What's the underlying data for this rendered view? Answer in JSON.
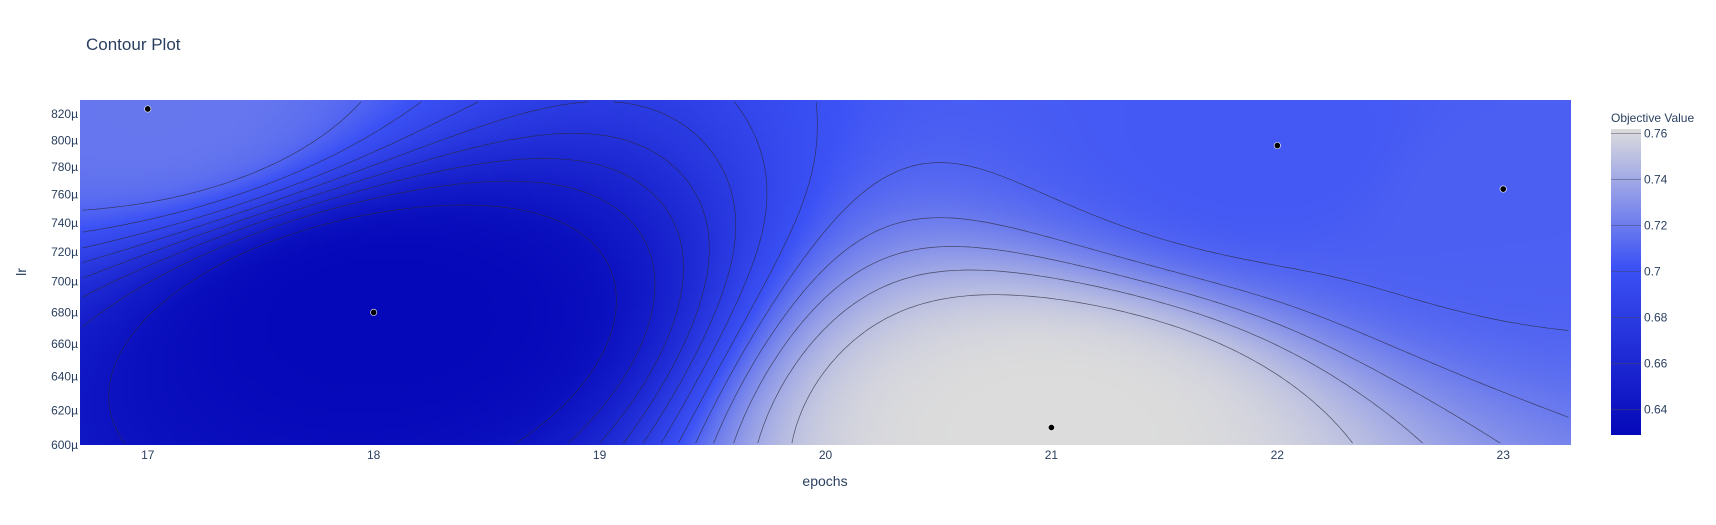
{
  "chart_data": {
    "type": "contour",
    "title": "Contour Plot",
    "xlabel": "epochs",
    "ylabel": "lr",
    "x_ticks": [
      17,
      18,
      19,
      20,
      21,
      22,
      23
    ],
    "y_ticks": [
      0.0006,
      0.00062,
      0.00064,
      0.00066,
      0.00068,
      0.0007,
      0.00072,
      0.00074,
      0.00076,
      0.00078,
      0.0008,
      0.00082
    ],
    "y_tick_labels": [
      "600µ",
      "620µ",
      "640µ",
      "660µ",
      "680µ",
      "700µ",
      "720µ",
      "740µ",
      "760µ",
      "780µ",
      "800µ",
      "820µ"
    ],
    "xlim": [
      16.7,
      23.3
    ],
    "ylim": [
      0.0006,
      0.000831
    ],
    "y_scale": "log",
    "colorbar": {
      "title": "Objective Value",
      "range": [
        0.629,
        0.762
      ],
      "ticks": [
        0.64,
        0.66,
        0.68,
        0.7,
        0.72,
        0.74,
        0.76
      ],
      "tick_labels": [
        "0.64",
        "0.66",
        "0.68",
        "0.7",
        "0.72",
        "0.74",
        "0.76"
      ],
      "colors": [
        "#0508b8",
        "#3c52f5",
        "#dcdcdc"
      ]
    },
    "points": [
      {
        "x": 17,
        "y": 0.000824,
        "value": 0.718
      },
      {
        "x": 18,
        "y": 0.00068,
        "value": 0.629
      },
      {
        "x": 21,
        "y": 0.00061,
        "value": 0.762
      },
      {
        "x": 22,
        "y": 0.000796,
        "value": 0.705
      },
      {
        "x": 23,
        "y": 0.000764,
        "value": 0.708
      }
    ],
    "grid": false
  }
}
